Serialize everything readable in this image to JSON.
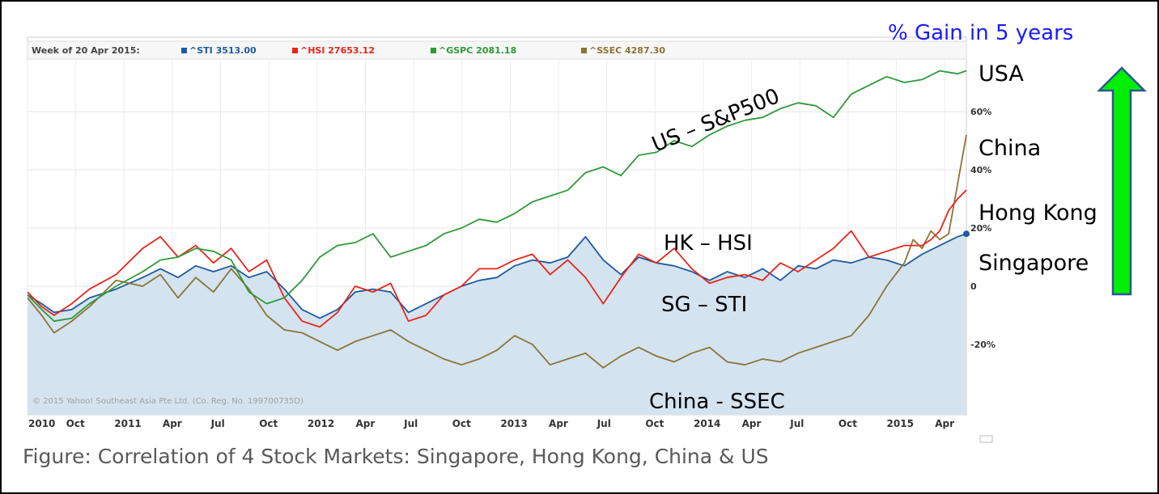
{
  "caption": "Figure: Correlation of 4 Stock Markets: Singapore, Hong Kong, China & US",
  "gain_label": "% Gain in 5 years",
  "legend": {
    "date": "Week of 20 Apr 2015:",
    "items": [
      {
        "text": "^STI 3513.00",
        "color": "#1f5aa0"
      },
      {
        "text": "^HSI 27653.12",
        "color": "#e8251b"
      },
      {
        "text": "^GSPC 2081.18",
        "color": "#2e9a3a"
      },
      {
        "text": "^SSEC 4287.30",
        "color": "#8c7336"
      }
    ]
  },
  "copyright": "© 2015 Yahoo! Southeast Asia Pte Ltd. (Co. Reg. No. 199700735D)",
  "annotations": {
    "us": "US – S&P500",
    "hk": "HK – HSI",
    "sg": "SG – STI",
    "china": "China - SSEC"
  },
  "side_labels": [
    "USA",
    "China",
    "Hong Kong",
    "Singapore"
  ],
  "arrow_color": "#00ee00",
  "chart_data": {
    "type": "line",
    "x_tick_labels": [
      "2010",
      "Oct",
      "2011",
      "Apr",
      "Jul",
      "Oct",
      "2012",
      "Apr",
      "Jul",
      "Oct",
      "2013",
      "Apr",
      "Jul",
      "Oct",
      "2014",
      "Apr",
      "Jul",
      "Oct",
      "2015",
      "Apr"
    ],
    "y_tick_labels": [
      "60%",
      "40%",
      "20%",
      "0",
      "-20%"
    ],
    "ylim": [
      -38,
      75
    ],
    "grid": true,
    "legend_position": "top",
    "series": [
      {
        "name": "^STI",
        "color": "#1f5aa0",
        "filled": true,
        "fill_color": "#d4e3f0",
        "x": [
          0,
          0.08,
          0.15,
          0.25,
          0.35,
          0.5,
          0.65,
          0.75,
          0.85,
          0.95,
          1.05,
          1.15,
          1.25,
          1.35,
          1.45,
          1.55,
          1.65,
          1.75,
          1.85,
          1.95,
          2.05,
          2.15,
          2.25,
          2.35,
          2.45,
          2.55,
          2.65,
          2.75,
          2.85,
          2.95,
          3.05,
          3.15,
          3.25,
          3.35,
          3.45,
          3.55,
          3.65,
          3.75,
          3.85,
          3.95,
          4.05,
          4.15,
          4.25,
          4.35,
          4.45,
          4.55,
          4.65,
          4.75,
          4.85,
          4.95,
          5.05,
          5.15,
          5.25,
          5.3
        ],
        "y": [
          -3,
          -6,
          -9,
          -8,
          -4,
          -1,
          3,
          6,
          3,
          7,
          5,
          7,
          3,
          5,
          -1,
          -8,
          -11,
          -8,
          -2,
          -1,
          -2,
          -9,
          -6,
          -3,
          0,
          2,
          3,
          7,
          9,
          8,
          10,
          17,
          9,
          4,
          10,
          8,
          7,
          5,
          2,
          5,
          3,
          6,
          2,
          7,
          6,
          9,
          8,
          10,
          9,
          7,
          11,
          14,
          17,
          18
        ]
      },
      {
        "name": "^HSI",
        "color": "#e8251b",
        "x": [
          0,
          0.08,
          0.15,
          0.25,
          0.35,
          0.5,
          0.65,
          0.75,
          0.85,
          0.95,
          1.05,
          1.15,
          1.25,
          1.35,
          1.45,
          1.55,
          1.65,
          1.75,
          1.85,
          1.95,
          2.05,
          2.15,
          2.25,
          2.35,
          2.45,
          2.55,
          2.65,
          2.75,
          2.85,
          2.95,
          3.05,
          3.15,
          3.25,
          3.35,
          3.45,
          3.55,
          3.65,
          3.75,
          3.85,
          3.95,
          4.05,
          4.15,
          4.25,
          4.35,
          4.45,
          4.55,
          4.65,
          4.75,
          4.85,
          4.95,
          5.05,
          5.1,
          5.15,
          5.2,
          5.25,
          5.3
        ],
        "y": [
          -2,
          -7,
          -10,
          -6,
          -1,
          4,
          13,
          17,
          10,
          14,
          8,
          13,
          5,
          9,
          -4,
          -12,
          -14,
          -9,
          0,
          -2,
          1,
          -12,
          -10,
          -3,
          0,
          6,
          6,
          9,
          11,
          4,
          9,
          3,
          -6,
          3,
          11,
          8,
          13,
          6,
          1,
          3,
          4,
          2,
          8,
          5,
          9,
          13,
          19,
          10,
          12,
          14,
          14,
          16,
          19,
          26,
          30,
          33
        ]
      },
      {
        "name": "^GSPC",
        "color": "#2e9a3a",
        "x": [
          0,
          0.08,
          0.15,
          0.25,
          0.35,
          0.5,
          0.65,
          0.75,
          0.85,
          0.95,
          1.05,
          1.15,
          1.25,
          1.35,
          1.45,
          1.55,
          1.65,
          1.75,
          1.85,
          1.95,
          2.05,
          2.15,
          2.25,
          2.35,
          2.45,
          2.55,
          2.65,
          2.75,
          2.85,
          2.95,
          3.05,
          3.15,
          3.25,
          3.35,
          3.45,
          3.55,
          3.65,
          3.75,
          3.85,
          3.95,
          4.05,
          4.15,
          4.25,
          4.35,
          4.45,
          4.55,
          4.65,
          4.75,
          4.85,
          4.95,
          5.05,
          5.15,
          5.25,
          5.3
        ],
        "y": [
          -3,
          -8,
          -12,
          -11,
          -6,
          0,
          5,
          9,
          10,
          13,
          12,
          9,
          -2,
          -6,
          -4,
          2,
          10,
          14,
          15,
          18,
          10,
          12,
          14,
          18,
          20,
          23,
          22,
          25,
          29,
          31,
          33,
          39,
          41,
          38,
          45,
          46,
          50,
          48,
          52,
          55,
          57,
          58,
          61,
          63,
          62,
          58,
          66,
          69,
          72,
          70,
          71,
          74,
          73,
          74
        ]
      },
      {
        "name": "^SSEC",
        "color": "#8c7336",
        "x": [
          0,
          0.08,
          0.15,
          0.25,
          0.35,
          0.5,
          0.65,
          0.75,
          0.85,
          0.95,
          1.05,
          1.15,
          1.25,
          1.35,
          1.45,
          1.55,
          1.65,
          1.75,
          1.85,
          1.95,
          2.05,
          2.15,
          2.25,
          2.35,
          2.45,
          2.55,
          2.65,
          2.75,
          2.85,
          2.95,
          3.05,
          3.15,
          3.25,
          3.35,
          3.45,
          3.55,
          3.65,
          3.75,
          3.85,
          3.95,
          4.05,
          4.15,
          4.25,
          4.35,
          4.45,
          4.55,
          4.65,
          4.75,
          4.85,
          4.95,
          5.0,
          5.05,
          5.1,
          5.15,
          5.2,
          5.25,
          5.3
        ],
        "y": [
          -4,
          -10,
          -16,
          -12,
          -7,
          2,
          0,
          4,
          -4,
          3,
          -2,
          6,
          -1,
          -10,
          -15,
          -16,
          -19,
          -22,
          -19,
          -17,
          -15,
          -19,
          -22,
          -25,
          -27,
          -25,
          -22,
          -17,
          -20,
          -27,
          -25,
          -23,
          -28,
          -24,
          -21,
          -24,
          -26,
          -23,
          -21,
          -26,
          -27,
          -25,
          -26,
          -23,
          -21,
          -19,
          -17,
          -10,
          0,
          8,
          16,
          13,
          19,
          16,
          18,
          35,
          52
        ]
      }
    ]
  }
}
